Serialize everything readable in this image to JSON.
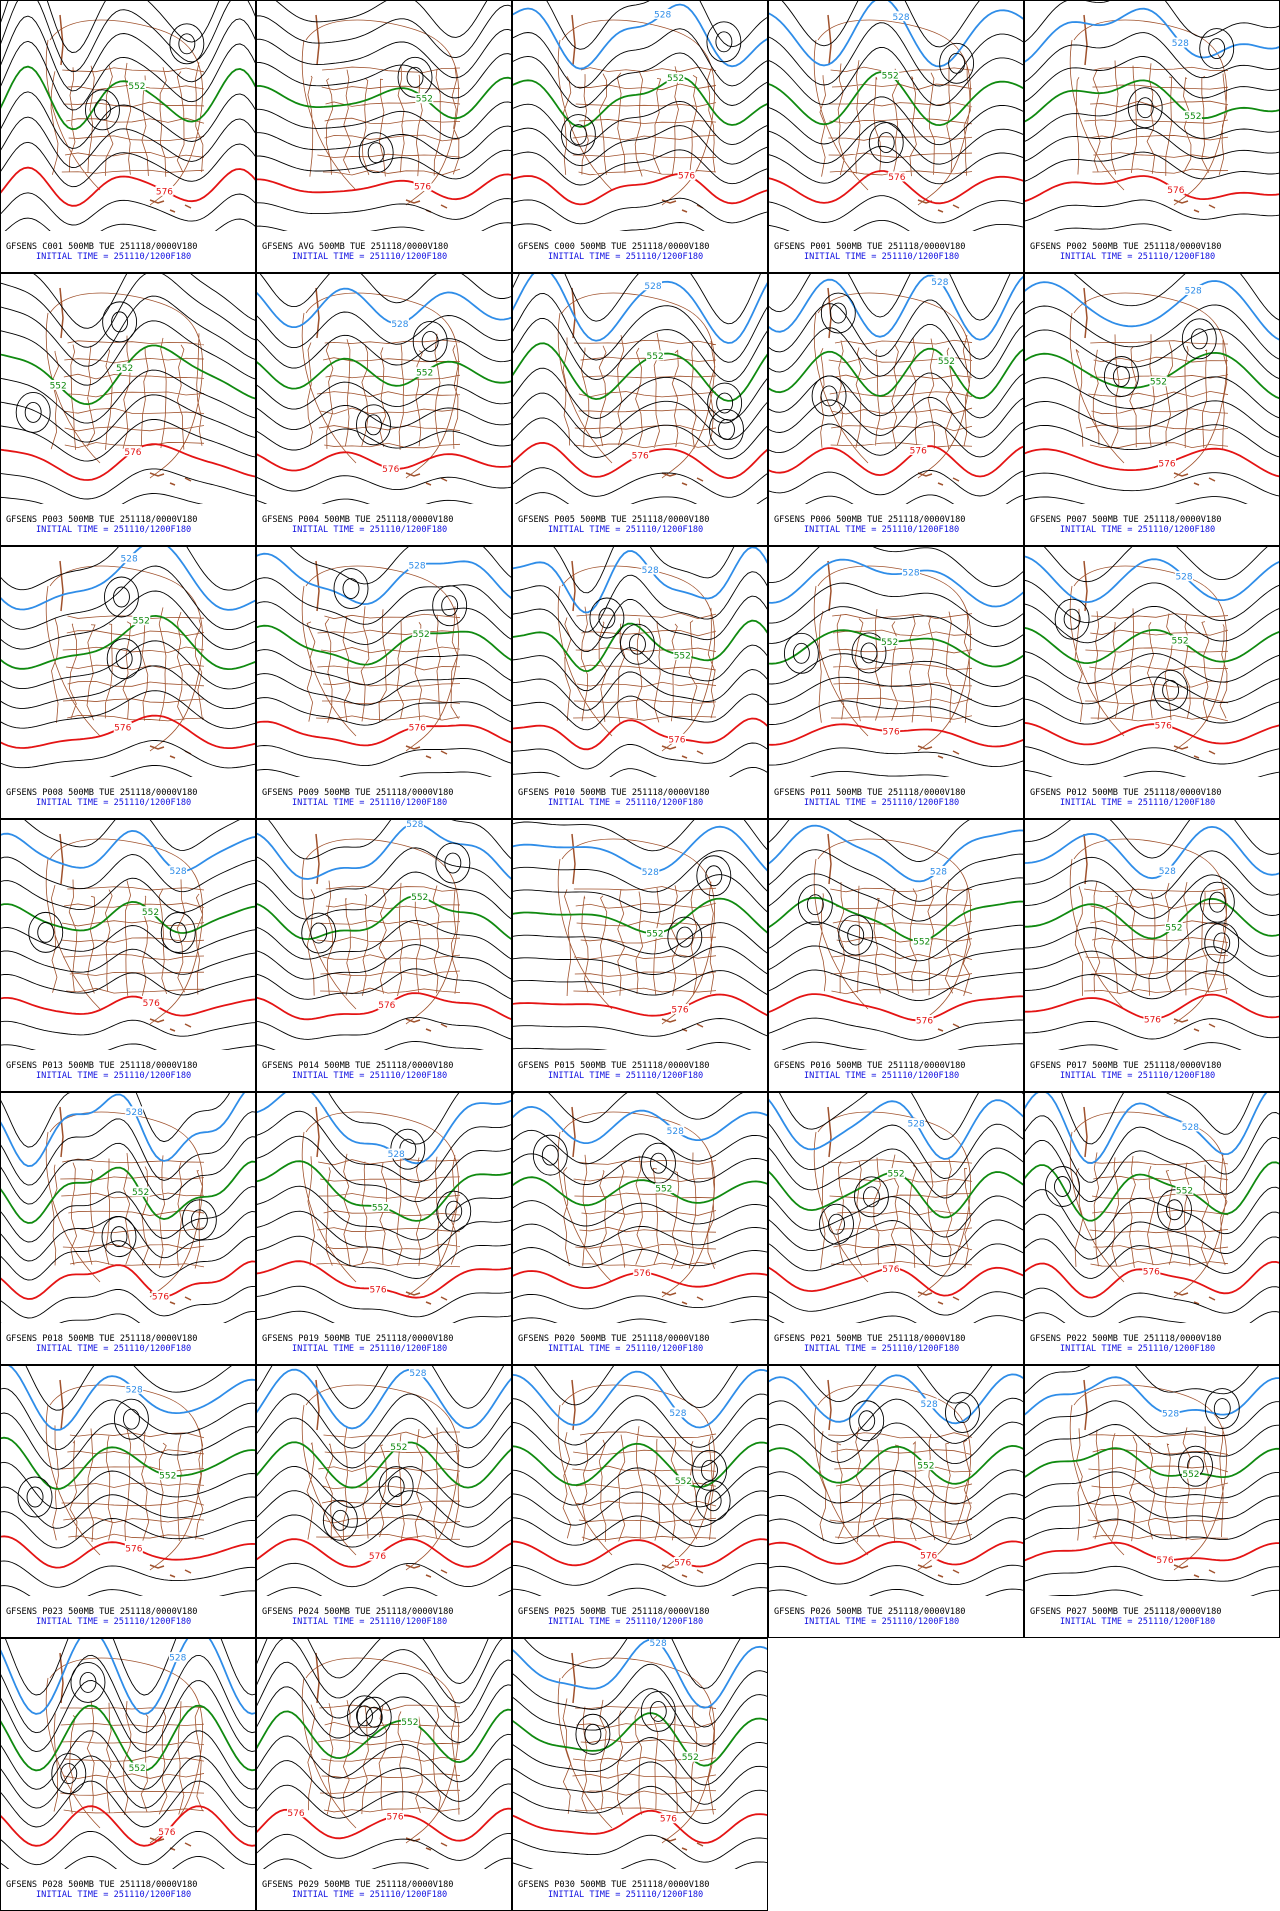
{
  "contour_colors": {
    "528": "#2f8de8",
    "552": "#108a10",
    "576": "#e41414"
  },
  "panels": [
    {
      "title": "GFSENS C001 500MB TUE 251118/0000V180",
      "init": "INITIAL TIME = 251110/1200F180",
      "labels": [
        "552",
        "576"
      ]
    },
    {
      "title": "GFSENS AVG 500MB TUE 251118/0000V180",
      "init": "INITIAL TIME = 251110/1200F180",
      "labels": [
        "552",
        "576"
      ]
    },
    {
      "title": "GFSENS C000 500MB TUE 251118/0000V180",
      "init": "INITIAL TIME = 251110/1200F180",
      "labels": [
        "528",
        "552",
        "576"
      ]
    },
    {
      "title": "GFSENS P001 500MB TUE 251118/0000V180",
      "init": "INITIAL TIME = 251110/1200F180",
      "labels": [
        "528",
        "552",
        "576"
      ]
    },
    {
      "title": "GFSENS P002 500MB TUE 251118/0000V180",
      "init": "INITIAL TIME = 251110/1200F180",
      "labels": [
        "528",
        "552",
        "576"
      ]
    },
    {
      "title": "GFSENS P003 500MB TUE 251118/0000V180",
      "init": "INITIAL TIME = 251110/1200F180",
      "labels": [
        "552",
        "552",
        "576"
      ]
    },
    {
      "title": "GFSENS P004 500MB TUE 251118/0000V180",
      "init": "INITIAL TIME = 251110/1200F180",
      "labels": [
        "528",
        "552",
        "576"
      ]
    },
    {
      "title": "GFSENS P005 500MB TUE 251118/0000V180",
      "init": "INITIAL TIME = 251110/1200F180",
      "labels": [
        "528",
        "552",
        "576"
      ]
    },
    {
      "title": "GFSENS P006 500MB TUE 251118/0000V180",
      "init": "INITIAL TIME = 251110/1200F180",
      "labels": [
        "528",
        "552",
        "576"
      ]
    },
    {
      "title": "GFSENS P007 500MB TUE 251118/0000V180",
      "init": "INITIAL TIME = 251110/1200F180",
      "labels": [
        "528",
        "552",
        "576"
      ]
    },
    {
      "title": "GFSENS P008 500MB TUE 251118/0000V180",
      "init": "INITIAL TIME = 251110/1200F180",
      "labels": [
        "528",
        "552",
        "576"
      ]
    },
    {
      "title": "GFSENS P009 500MB TUE 251118/0000V180",
      "init": "INITIAL TIME = 251110/1200F180",
      "labels": [
        "528",
        "552",
        "576"
      ]
    },
    {
      "title": "GFSENS P010 500MB TUE 251118/0000V180",
      "init": "INITIAL TIME = 251110/1200F180",
      "labels": [
        "528",
        "552",
        "576"
      ]
    },
    {
      "title": "GFSENS P011 500MB TUE 251118/0000V180",
      "init": "INITIAL TIME = 251110/1200F180",
      "labels": [
        "528",
        "552",
        "576"
      ]
    },
    {
      "title": "GFSENS P012 500MB TUE 251118/0000V180",
      "init": "INITIAL TIME = 251110/1200F180",
      "labels": [
        "528",
        "552",
        "576"
      ]
    },
    {
      "title": "GFSENS P013 500MB TUE 251118/0000V180",
      "init": "INITIAL TIME = 251110/1200F180",
      "labels": [
        "528",
        "552",
        "576"
      ]
    },
    {
      "title": "GFSENS P014 500MB TUE 251118/0000V180",
      "init": "INITIAL TIME = 251110/1200F180",
      "labels": [
        "528",
        "552",
        "576"
      ]
    },
    {
      "title": "GFSENS P015 500MB TUE 251118/0000V180",
      "init": "INITIAL TIME = 251110/1200F180",
      "labels": [
        "528",
        "552",
        "576"
      ]
    },
    {
      "title": "GFSENS P016 500MB TUE 251118/0000V180",
      "init": "INITIAL TIME = 251110/1200F180",
      "labels": [
        "528",
        "552",
        "576"
      ]
    },
    {
      "title": "GFSENS P017 500MB TUE 251118/0000V180",
      "init": "INITIAL TIME = 251110/1200F180",
      "labels": [
        "528",
        "552",
        "576"
      ]
    },
    {
      "title": "GFSENS P018 500MB TUE 251118/0000V180",
      "init": "INITIAL TIME = 251110/1200F180",
      "labels": [
        "528",
        "552",
        "576"
      ]
    },
    {
      "title": "GFSENS P019 500MB TUE 251118/0000V180",
      "init": "INITIAL TIME = 251110/1200F180",
      "labels": [
        "528",
        "552",
        "576"
      ]
    },
    {
      "title": "GFSENS P020 500MB TUE 251118/0000V180",
      "init": "INITIAL TIME = 251110/1200F180",
      "labels": [
        "528",
        "552",
        "576"
      ]
    },
    {
      "title": "GFSENS P021 500MB TUE 251118/0000V180",
      "init": "INITIAL TIME = 251110/1200F180",
      "labels": [
        "528",
        "552",
        "576"
      ]
    },
    {
      "title": "GFSENS P022 500MB TUE 251118/0000V180",
      "init": "INITIAL TIME = 251110/1200F180",
      "labels": [
        "528",
        "552",
        "576"
      ]
    },
    {
      "title": "GFSENS P023 500MB TUE 251118/0000V180",
      "init": "INITIAL TIME = 251110/1200F180",
      "labels": [
        "528",
        "552",
        "576"
      ]
    },
    {
      "title": "GFSENS P024 500MB TUE 251118/0000V180",
      "init": "INITIAL TIME = 251110/1200F180",
      "labels": [
        "528",
        "552",
        "576"
      ]
    },
    {
      "title": "GFSENS P025 500MB TUE 251118/0000V180",
      "init": "INITIAL TIME = 251110/1200F180",
      "labels": [
        "528",
        "552",
        "576"
      ]
    },
    {
      "title": "GFSENS P026 500MB TUE 251118/0000V180",
      "init": "INITIAL TIME = 251110/1200F180",
      "labels": [
        "528",
        "552",
        "576"
      ]
    },
    {
      "title": "GFSENS P027 500MB TUE 251118/0000V180",
      "init": "INITIAL TIME = 251110/1200F180",
      "labels": [
        "528",
        "552",
        "576"
      ]
    },
    {
      "title": "GFSENS P028 500MB TUE 251118/0000V180",
      "init": "INITIAL TIME = 251110/1200F180",
      "labels": [
        "528",
        "552",
        "576"
      ]
    },
    {
      "title": "GFSENS P029 500MB TUE 251118/0000V180",
      "init": "INITIAL TIME = 251110/1200F180",
      "labels": [
        "552",
        "576",
        "576"
      ]
    },
    {
      "title": "GFSENS P030 500MB TUE 251118/0000V180",
      "init": "INITIAL TIME = 251110/1200F180",
      "labels": [
        "528",
        "552",
        "576"
      ]
    }
  ]
}
